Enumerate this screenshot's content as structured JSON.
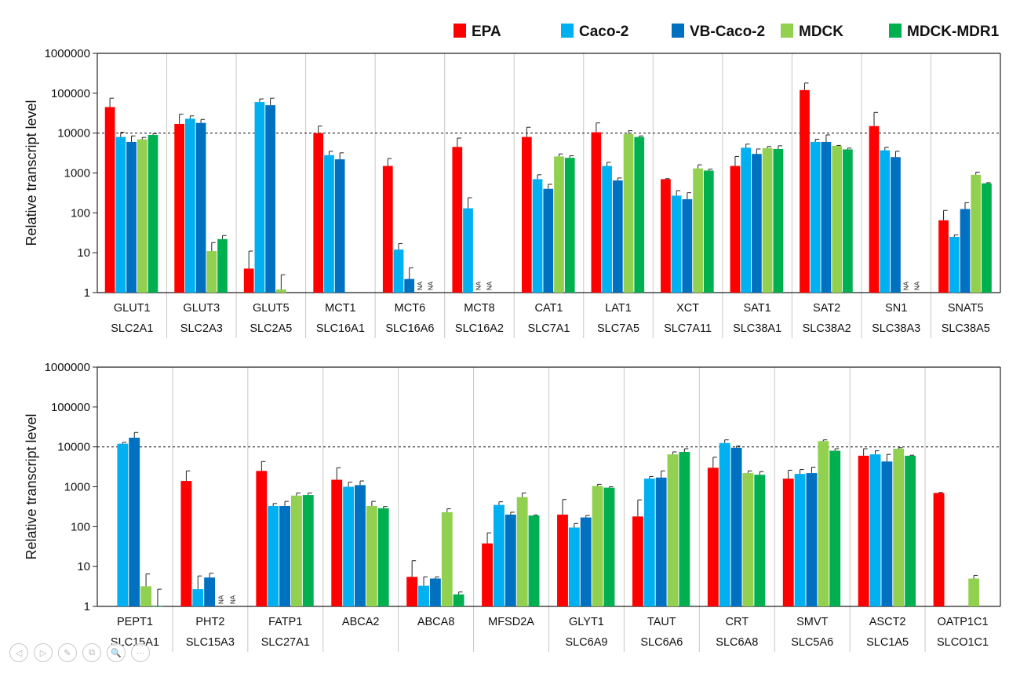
{
  "colors": {
    "EPA": "#ff0000",
    "Caco-2": "#00b0f0",
    "VB-Caco-2": "#0070c0",
    "MDCK": "#92d050",
    "MDCK-MDR1": "#00b050"
  },
  "chart_data": [
    {
      "type": "bar",
      "scale": "log",
      "ylabel": "Relative transcript level",
      "ylim": [
        1,
        1000000
      ],
      "yticks": [
        "1",
        "10",
        "100",
        "1000",
        "10000",
        "100000",
        "1000000"
      ],
      "reference_line": 10000,
      "legend": [
        "EPA",
        "Caco-2",
        "VB-Caco-2",
        "MDCK",
        "MDCK-MDR1"
      ],
      "legend_position": "top-right",
      "series": [
        "EPA",
        "Caco-2",
        "VB-Caco-2",
        "MDCK",
        "MDCK-MDR1"
      ],
      "categories": [
        {
          "gene": "GLUT1",
          "symbol": "SLC2A1",
          "values": [
            45000,
            8000,
            6000,
            7000,
            9000
          ],
          "errors": [
            75000,
            10500,
            8500,
            7800,
            9700
          ],
          "na": []
        },
        {
          "gene": "GLUT3",
          "symbol": "SLC2A3",
          "values": [
            17000,
            23000,
            18000,
            11,
            22
          ],
          "errors": [
            30000,
            27000,
            22000,
            18,
            27
          ],
          "na": []
        },
        {
          "gene": "GLUT5",
          "symbol": "SLC2A5",
          "values": [
            4,
            60000,
            50000,
            1.2,
            null
          ],
          "errors": [
            11,
            72000,
            75000,
            2.8,
            null
          ],
          "na": []
        },
        {
          "gene": "MCT1",
          "symbol": "SLC16A1",
          "values": [
            10000,
            2800,
            2200,
            null,
            null
          ],
          "errors": [
            15000,
            3500,
            3200,
            null,
            null
          ],
          "na": []
        },
        {
          "gene": "MCT6",
          "symbol": "SLC16A6",
          "values": [
            1500,
            12,
            2.2,
            null,
            null
          ],
          "errors": [
            2300,
            17,
            4.2,
            null,
            null
          ],
          "na": [
            3,
            4
          ]
        },
        {
          "gene": "MCT8",
          "symbol": "SLC16A2",
          "values": [
            4500,
            130,
            null,
            null,
            null
          ],
          "errors": [
            7500,
            240,
            null,
            null,
            null
          ],
          "na": [
            2,
            3
          ]
        },
        {
          "gene": "CAT1",
          "symbol": "SLC7A1",
          "values": [
            8000,
            700,
            400,
            2600,
            2400
          ],
          "errors": [
            14000,
            900,
            520,
            3000,
            2700
          ],
          "na": []
        },
        {
          "gene": "LAT1",
          "symbol": "SLC7A5",
          "values": [
            10500,
            1500,
            650,
            9500,
            8000
          ],
          "errors": [
            18000,
            1850,
            750,
            11500,
            8500
          ],
          "na": []
        },
        {
          "gene": "XCT",
          "symbol": "SLC7A11",
          "values": [
            700,
            270,
            220,
            1300,
            1150
          ],
          "errors": [
            720,
            360,
            320,
            1600,
            1250
          ],
          "na": []
        },
        {
          "gene": "SAT1",
          "symbol": "SLC38A1",
          "values": [
            1500,
            4300,
            3000,
            4200,
            4000
          ],
          "errors": [
            2600,
            5300,
            4000,
            4600,
            4800
          ],
          "na": []
        },
        {
          "gene": "SAT2",
          "symbol": "SLC38A2",
          "values": [
            120000,
            6000,
            6000,
            4800,
            3900
          ],
          "errors": [
            180000,
            7000,
            9000,
            4900,
            4200
          ],
          "na": []
        },
        {
          "gene": "SN1",
          "symbol": "SLC38A3",
          "values": [
            15000,
            3700,
            2500,
            null,
            null
          ],
          "errors": [
            33000,
            4400,
            3500,
            null,
            null
          ],
          "na": [
            3,
            4
          ]
        },
        {
          "gene": "SNAT5",
          "symbol": "SLC38A5",
          "values": [
            65,
            25,
            125,
            900,
            550
          ],
          "errors": [
            115,
            28,
            180,
            1050,
            570
          ],
          "na": []
        }
      ]
    },
    {
      "type": "bar",
      "scale": "log",
      "ylabel": "Relative transcript level",
      "ylim": [
        1,
        1000000
      ],
      "yticks": [
        "1",
        "10",
        "100",
        "1000",
        "10000",
        "100000",
        "1000000"
      ],
      "reference_line": 10000,
      "series": [
        "EPA",
        "Caco-2",
        "VB-Caco-2",
        "MDCK",
        "MDCK-MDR1"
      ],
      "categories": [
        {
          "gene": "PEPT1",
          "symbol": "SLC15A1",
          "values": [
            null,
            12000,
            17000,
            3.2,
            1
          ],
          "errors": [
            null,
            13000,
            23000,
            6.5,
            2.7
          ],
          "na": []
        },
        {
          "gene": "PHT2",
          "symbol": "SLC15A3",
          "values": [
            1400,
            2.7,
            5.3,
            null,
            null
          ],
          "errors": [
            2500,
            5.8,
            6.8,
            null,
            null
          ],
          "na": [
            3,
            4
          ]
        },
        {
          "gene": "FATP1",
          "symbol": "SLC27A1",
          "values": [
            2500,
            330,
            330,
            600,
            620
          ],
          "errors": [
            4300,
            380,
            430,
            700,
            700
          ],
          "na": []
        },
        {
          "gene": "ABCA2",
          "symbol": "",
          "values": [
            1500,
            1000,
            1100,
            330,
            290
          ],
          "errors": [
            3000,
            1300,
            1400,
            430,
            320
          ],
          "na": []
        },
        {
          "gene": "ABCA8",
          "symbol": "",
          "values": [
            5.5,
            3.3,
            5,
            230,
            2
          ],
          "errors": [
            14,
            5.5,
            5.5,
            280,
            2.3
          ],
          "na": []
        },
        {
          "gene": "MFSD2A",
          "symbol": "",
          "values": [
            38,
            350,
            200,
            550,
            190
          ],
          "errors": [
            70,
            420,
            230,
            700,
            195
          ],
          "na": []
        },
        {
          "gene": "GLYT1",
          "symbol": "SLC6A9",
          "values": [
            200,
            95,
            170,
            1050,
            950
          ],
          "errors": [
            480,
            120,
            190,
            1150,
            1000
          ],
          "na": []
        },
        {
          "gene": "TAUT",
          "symbol": "SLC6A6",
          "values": [
            180,
            1600,
            1700,
            6500,
            7500
          ],
          "errors": [
            470,
            1800,
            2500,
            7500,
            9000
          ],
          "na": []
        },
        {
          "gene": "CRT",
          "symbol": "SLC6A8",
          "values": [
            3000,
            12500,
            9500,
            2200,
            2000
          ],
          "errors": [
            5500,
            15000,
            10500,
            2500,
            2400
          ],
          "na": []
        },
        {
          "gene": "SMVT",
          "symbol": "SLC5A6",
          "values": [
            1600,
            2100,
            2200,
            14000,
            8000
          ],
          "errors": [
            2600,
            2700,
            3100,
            15000,
            9000
          ],
          "na": []
        },
        {
          "gene": "ASCT2",
          "symbol": "SLC1A5",
          "values": [
            6000,
            6500,
            4300,
            9000,
            6000
          ],
          "errors": [
            9000,
            8000,
            6500,
            9500,
            6200
          ],
          "na": []
        },
        {
          "gene": "OATP1C1",
          "symbol": "SLCO1C1",
          "values": [
            700,
            null,
            null,
            5,
            null
          ],
          "errors": [
            720,
            null,
            null,
            6,
            null
          ],
          "na": []
        }
      ]
    }
  ],
  "na_label": "NA",
  "viewer_controls": [
    "◁",
    "▷",
    "✎",
    "⧉",
    "🔍",
    "⋯"
  ]
}
